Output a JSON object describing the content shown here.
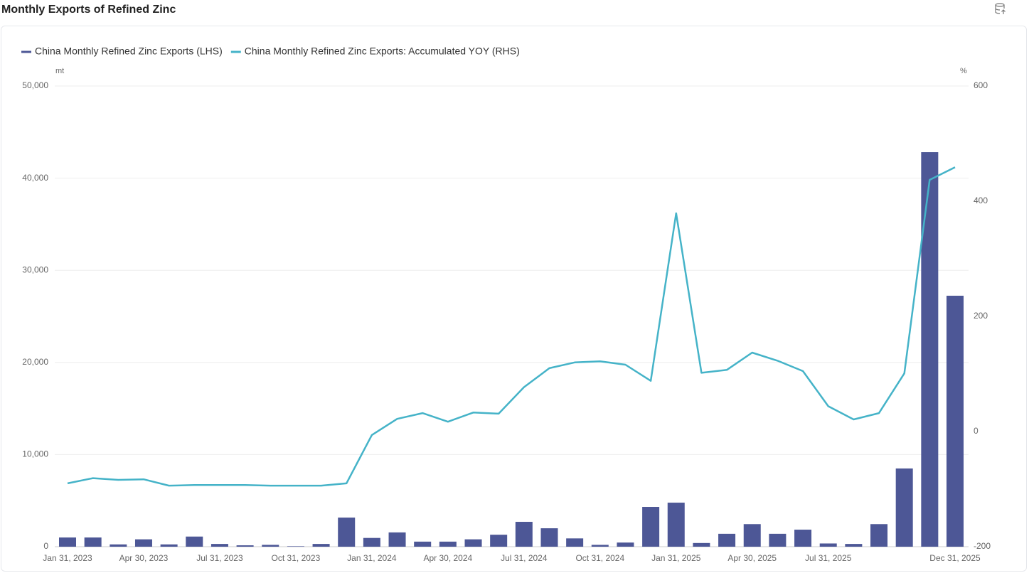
{
  "chart_data": {
    "type": "bar-line",
    "title": "Monthly Exports of Refined Zinc",
    "y_unit": "mt",
    "y2_unit": "%",
    "categories": [
      "Jan 31, 2023",
      null,
      null,
      "Apr 30, 2023",
      null,
      null,
      "Jul 31, 2023",
      null,
      null,
      "Oct 31, 2023",
      null,
      null,
      "Jan 31, 2024",
      null,
      null,
      "Apr 30, 2024",
      null,
      null,
      "Jul 31, 2024",
      null,
      null,
      "Oct 31, 2024",
      null,
      null,
      "Jan 31, 2025",
      null,
      null,
      "Apr 30, 2025",
      null,
      null,
      "Jul 31, 2025",
      null,
      null,
      null,
      null,
      "Dec 31, 2025"
    ],
    "series": [
      {
        "name": "China Monthly Refined Zinc Exports (LHS)",
        "type": "bar",
        "color": "#4d5796",
        "axis": "y",
        "values": [
          1000,
          1000,
          250,
          800,
          250,
          1100,
          300,
          150,
          200,
          50,
          300,
          3160,
          950,
          1550,
          550,
          550,
          800,
          1300,
          2700,
          2000,
          900,
          200,
          450,
          4320,
          4780,
          400,
          1400,
          2450,
          1400,
          1850,
          350,
          300,
          2450,
          8490,
          42820,
          27240
        ]
      },
      {
        "name": "China Monthly Refined Zinc Exports: Accumulated YOY (RHS)",
        "type": "line",
        "color": "#45b3c8",
        "axis": "y2",
        "values": [
          -90,
          -81,
          -84,
          -83,
          -94,
          -93,
          -93,
          -93,
          -94,
          -94,
          -94,
          -90,
          -6,
          22,
          32,
          17,
          33,
          31,
          77,
          110,
          120,
          122,
          116,
          88,
          379,
          102,
          107,
          137,
          123,
          105,
          44,
          21,
          32,
          101,
          437,
          459
        ]
      }
    ],
    "ylim": [
      0,
      50000
    ],
    "yticks": [
      0,
      {
        "value": 10000,
        "label": "10,000"
      },
      {
        "value": 20000,
        "label": "20,000"
      },
      {
        "value": 30000,
        "label": "30,000"
      },
      {
        "value": 40000,
        "label": "40,000"
      },
      {
        "value": 50000,
        "label": "50,000"
      }
    ],
    "y2lim": [
      -200,
      600
    ],
    "y2ticks": [
      -200,
      0,
      200,
      400,
      600
    ],
    "grid": true
  }
}
